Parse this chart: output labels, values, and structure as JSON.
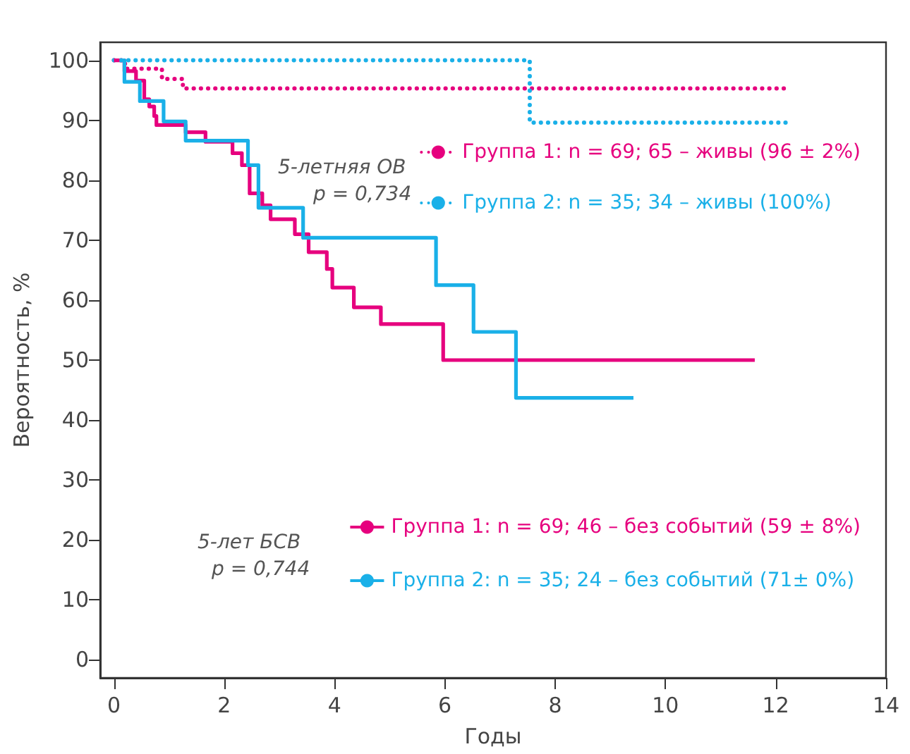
{
  "chart_data": {
    "type": "step",
    "xlabel": "Годы",
    "ylabel": "Вероятность, %",
    "xlim": [
      -0.25,
      14
    ],
    "ylim": [
      -3,
      103
    ],
    "xticks": [
      0,
      2,
      4,
      6,
      8,
      10,
      12,
      14
    ],
    "yticks": [
      0,
      10,
      20,
      30,
      40,
      50,
      60,
      70,
      80,
      90,
      100
    ],
    "grid": false,
    "legend": "right",
    "annotations": [
      "5-летняя ОВ",
      "p = 0,734",
      "5-лет БСВ",
      "p = 0,744"
    ],
    "series": [
      {
        "name": "Группа 1: n = 69; 65 – живы (96 ± 2%)",
        "color": "#e6007e",
        "line_style": "dotted",
        "x": [
          0,
          0.2,
          0.87,
          1.25,
          12.2
        ],
        "values": [
          100,
          98.6,
          96.9,
          95.3,
          95.3
        ]
      },
      {
        "name": "Группа 2: n = 35; 34 – живы (100%)",
        "color": "#1ab0e8",
        "line_style": "dotted",
        "x": [
          0,
          7.54,
          12.3
        ],
        "values": [
          100,
          89.6,
          89.6
        ]
      },
      {
        "name": "Группа 1: n = 69; 46 – без событий (59 ± 8%)",
        "color": "#e6007e",
        "line_style": "solid",
        "x": [
          0,
          0.19,
          0.4,
          0.55,
          0.64,
          0.73,
          0.77,
          1.3,
          1.66,
          2.15,
          2.32,
          2.46,
          2.69,
          2.84,
          3.28,
          3.53,
          3.86,
          3.96,
          4.35,
          4.84,
          5.97,
          11.62
        ],
        "values": [
          100,
          98.2,
          96.6,
          93.5,
          92.3,
          90.7,
          89.2,
          88,
          86.4,
          84.5,
          82.5,
          77.8,
          75.8,
          73.5,
          71,
          68,
          65.2,
          62.1,
          58.8,
          56,
          50,
          50
        ]
      },
      {
        "name": "Группа 2: n = 35; 24 – без событий (71± 0%)",
        "color": "#1ab0e8",
        "line_style": "solid",
        "x": [
          0.1,
          0.19,
          0.47,
          0.9,
          1.3,
          2.43,
          2.62,
          3.43,
          5.84,
          6.52,
          7.29,
          9.42
        ],
        "values": [
          100,
          96.4,
          93.2,
          89.8,
          86.6,
          82.5,
          75.4,
          70.4,
          62.5,
          54.7,
          43.7,
          43.7
        ]
      }
    ]
  }
}
